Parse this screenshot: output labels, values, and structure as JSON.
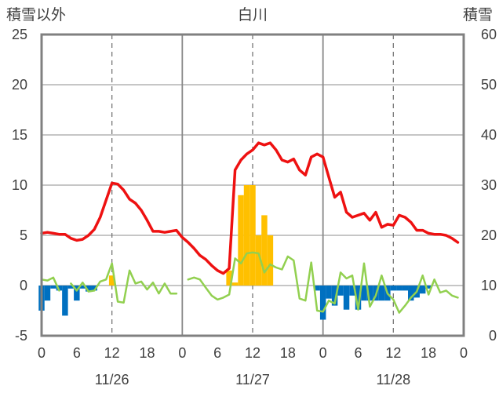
{
  "chart_data": {
    "type": "bar+line",
    "title": "白川",
    "left_axis_label": "積雪以外",
    "right_axis_label": "積雪",
    "left_ylim": [
      -5,
      25
    ],
    "left_ticks": [
      -5,
      0,
      5,
      10,
      15,
      20,
      25
    ],
    "right_ylim": [
      0,
      60
    ],
    "right_ticks": [
      0,
      10,
      20,
      30,
      40,
      50,
      60
    ],
    "x_hours_range": [
      0,
      72
    ],
    "x_tick_hours": [
      0,
      6,
      12,
      18,
      24,
      30,
      36,
      42,
      48,
      54,
      60,
      66,
      72
    ],
    "x_tick_labels": [
      "0",
      "6",
      "12",
      "18",
      "0",
      "6",
      "12",
      "18",
      "0",
      "6",
      "12",
      "18",
      "0"
    ],
    "date_labels": [
      {
        "text": "11/26",
        "hour": 12
      },
      {
        "text": "11/27",
        "hour": 36
      },
      {
        "text": "11/28",
        "hour": 60
      }
    ],
    "grid": {
      "vertical_solid_hours": [
        24,
        48
      ],
      "vertical_dashed_hours": [
        12,
        36,
        60
      ],
      "horizontal": true
    },
    "series": [
      {
        "name": "",
        "kind": "line",
        "axis": "left",
        "color": "#ee1111",
        "points": [
          [
            0,
            5.2
          ],
          [
            1,
            5.3
          ],
          [
            2,
            5.2
          ],
          [
            3,
            5.1
          ],
          [
            4,
            5.1
          ],
          [
            5,
            4.7
          ],
          [
            6,
            4.5
          ],
          [
            7,
            4.6
          ],
          [
            8,
            5.0
          ],
          [
            9,
            5.6
          ],
          [
            10,
            6.8
          ],
          [
            11,
            8.5
          ],
          [
            12,
            10.2
          ],
          [
            13,
            10.1
          ],
          [
            14,
            9.5
          ],
          [
            15,
            8.6
          ],
          [
            16,
            8.2
          ],
          [
            17,
            7.5
          ],
          [
            18,
            6.5
          ],
          [
            19,
            5.4
          ],
          [
            20,
            5.4
          ],
          [
            21,
            5.3
          ],
          [
            22,
            5.4
          ],
          [
            23,
            5.5
          ],
          [
            24,
            4.8
          ],
          [
            25,
            4.3
          ],
          [
            26,
            3.7
          ],
          [
            27,
            3.0
          ],
          [
            28,
            2.6
          ],
          [
            29,
            2.0
          ],
          [
            30,
            1.5
          ],
          [
            31,
            1.2
          ],
          [
            32,
            1.7
          ],
          [
            33,
            11.5
          ],
          [
            34,
            12.5
          ],
          [
            35,
            13.1
          ],
          [
            36,
            13.5
          ],
          [
            37,
            14.2
          ],
          [
            38,
            14.0
          ],
          [
            39,
            14.2
          ],
          [
            40,
            13.5
          ],
          [
            41,
            12.5
          ],
          [
            42,
            12.3
          ],
          [
            43,
            12.6
          ],
          [
            44,
            11.5
          ],
          [
            45,
            11.0
          ],
          [
            46,
            12.8
          ],
          [
            47,
            13.1
          ],
          [
            48,
            12.8
          ],
          [
            49,
            10.8
          ],
          [
            50,
            8.8
          ],
          [
            51,
            9.3
          ],
          [
            52,
            7.3
          ],
          [
            53,
            6.8
          ],
          [
            54,
            7.0
          ],
          [
            55,
            7.2
          ],
          [
            56,
            6.5
          ],
          [
            57,
            7.3
          ],
          [
            58,
            5.8
          ],
          [
            59,
            6.1
          ],
          [
            60,
            6.0
          ],
          [
            61,
            7.0
          ],
          [
            62,
            6.8
          ],
          [
            63,
            6.3
          ],
          [
            64,
            5.5
          ],
          [
            65,
            5.5
          ],
          [
            66,
            5.2
          ],
          [
            67,
            5.1
          ],
          [
            68,
            5.1
          ],
          [
            69,
            5.0
          ],
          [
            70,
            4.7
          ],
          [
            71,
            4.3
          ]
        ]
      },
      {
        "name": "",
        "kind": "line",
        "axis": "left",
        "color": "#92d050",
        "points": [
          [
            0,
            0.6
          ],
          [
            1,
            0.5
          ],
          [
            2,
            0.8
          ],
          [
            3,
            -0.5
          ],
          [
            4,
            null
          ],
          [
            5,
            0.2
          ],
          [
            6,
            -0.5
          ],
          [
            7,
            0.3
          ],
          [
            8,
            -0.6
          ],
          [
            9,
            -0.5
          ],
          [
            10,
            0.4
          ],
          [
            11,
            0.6
          ],
          [
            12,
            2.2
          ],
          [
            13,
            -1.6
          ],
          [
            14,
            -1.7
          ],
          [
            15,
            1.5
          ],
          [
            16,
            0.2
          ],
          [
            17,
            0.4
          ],
          [
            18,
            -0.4
          ],
          [
            19,
            0.3
          ],
          [
            20,
            -0.8
          ],
          [
            21,
            0.2
          ],
          [
            22,
            -0.8
          ],
          [
            23,
            -0.8
          ],
          [
            24,
            null
          ],
          [
            25,
            0.6
          ],
          [
            26,
            0.8
          ],
          [
            27,
            0.6
          ],
          [
            28,
            -0.2
          ],
          [
            29,
            -1.0
          ],
          [
            30,
            -1.4
          ],
          [
            31,
            -1.2
          ],
          [
            32,
            -0.9
          ],
          [
            33,
            2.7
          ],
          [
            34,
            2.2
          ],
          [
            35,
            3.2
          ],
          [
            36,
            3.3
          ],
          [
            37,
            3.2
          ],
          [
            38,
            1.3
          ],
          [
            39,
            2.1
          ],
          [
            40,
            1.8
          ],
          [
            41,
            1.6
          ],
          [
            42,
            2.9
          ],
          [
            43,
            2.5
          ],
          [
            44,
            -1.3
          ],
          [
            45,
            -1.5
          ],
          [
            46,
            2.3
          ],
          [
            47,
            -2.5
          ],
          [
            48,
            -2.6
          ],
          [
            49,
            -1.5
          ],
          [
            50,
            -1.8
          ],
          [
            51,
            1.3
          ],
          [
            52,
            0.7
          ],
          [
            53,
            1.0
          ],
          [
            54,
            -2.4
          ],
          [
            55,
            2.2
          ],
          [
            56,
            -2.1
          ],
          [
            57,
            -1.0
          ],
          [
            58,
            1.0
          ],
          [
            59,
            -0.8
          ],
          [
            60,
            -1.4
          ],
          [
            61,
            -2.7
          ],
          [
            62,
            -2.0
          ],
          [
            63,
            -1.2
          ],
          [
            64,
            -0.6
          ],
          [
            65,
            1.0
          ],
          [
            66,
            -0.9
          ],
          [
            67,
            0.6
          ],
          [
            68,
            -0.7
          ],
          [
            69,
            -0.5
          ],
          [
            70,
            -1.0
          ],
          [
            71,
            -1.2
          ]
        ]
      },
      {
        "name": "",
        "kind": "bar",
        "axis": "left",
        "color": "#0070c0",
        "points": [
          [
            0,
            -2.5
          ],
          [
            1,
            -1.5
          ],
          [
            2,
            -0.3
          ],
          [
            3,
            -0.5
          ],
          [
            4,
            -3.0
          ],
          [
            5,
            -0.3
          ],
          [
            6,
            -1.5
          ],
          [
            7,
            -0.3
          ],
          [
            8,
            -0.6
          ],
          [
            9,
            -0.5
          ],
          [
            47,
            -0.5
          ],
          [
            48,
            -3.4
          ],
          [
            49,
            -1.3
          ],
          [
            50,
            -2.0
          ],
          [
            51,
            -1.0
          ],
          [
            52,
            -2.4
          ],
          [
            53,
            -1.0
          ],
          [
            54,
            -2.4
          ],
          [
            55,
            -1.5
          ],
          [
            56,
            -1.5
          ],
          [
            57,
            -1.5
          ],
          [
            58,
            -1.5
          ],
          [
            59,
            -1.5
          ],
          [
            60,
            -0.5
          ],
          [
            61,
            -0.5
          ],
          [
            62,
            -0.5
          ],
          [
            63,
            -1.5
          ],
          [
            64,
            -1.2
          ],
          [
            65,
            -0.8
          ],
          [
            66,
            -0.3
          ]
        ]
      },
      {
        "name": "",
        "kind": "bar",
        "axis": "left",
        "color": "#ffc000",
        "points": [
          [
            12,
            1.0
          ],
          [
            32,
            1.5
          ],
          [
            33,
            0.3
          ],
          [
            34,
            9.0
          ],
          [
            35,
            10.0
          ],
          [
            36,
            10.0
          ],
          [
            37,
            5.0
          ],
          [
            38,
            7.0
          ],
          [
            39,
            5.0
          ]
        ]
      },
      {
        "name": "",
        "kind": "line",
        "axis": "left",
        "color": "#7030a0",
        "points": [
          [
            0,
            -5
          ],
          [
            72,
            -5
          ]
        ]
      }
    ]
  }
}
